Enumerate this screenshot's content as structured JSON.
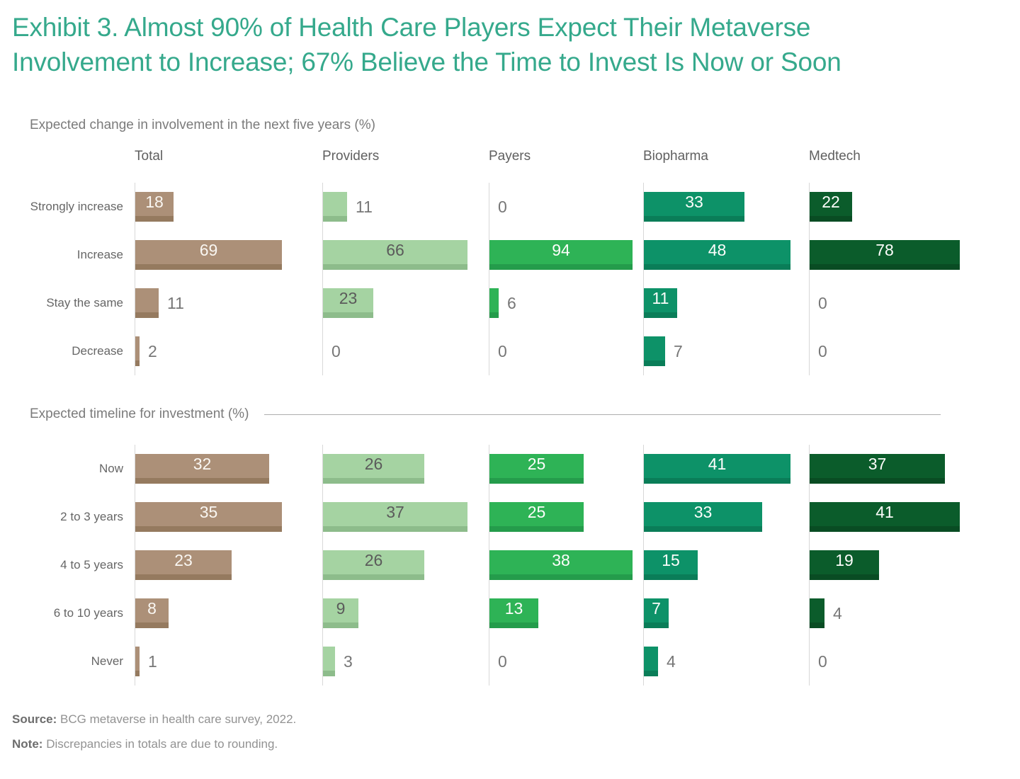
{
  "title": {
    "line1": "Exhibit 3. Almost 90% of Health Care Players Expect Their Metaverse",
    "line2": "Involvement to Increase; 67% Believe the Time to Invest Is Now or Soon"
  },
  "chart_data": [
    {
      "type": "bar",
      "orientation": "horizontal",
      "section_title": "Expected change in involvement in the next five years (%)",
      "value_unit": "%",
      "show_column_headers": true,
      "scaling": "each column normalized to its own max value",
      "categories": [
        "Strongly increase",
        "Increase",
        "Stay the same",
        "Decrease"
      ],
      "series": [
        {
          "name": "Total",
          "color": "#AC9078",
          "edge_color": "#957A5F",
          "inside_label_color": "#FAF7F2",
          "values": [
            18,
            69,
            11,
            2
          ]
        },
        {
          "name": "Providers",
          "color": "#A5D3A2",
          "edge_color": "#8DBC8B",
          "inside_label_color": "#5B5B5B",
          "values": [
            11,
            66,
            23,
            0
          ]
        },
        {
          "name": "Payers",
          "color": "#2EB356",
          "edge_color": "#249C4B",
          "inside_label_color": "#FDFDFB",
          "values": [
            0,
            94,
            6,
            0
          ]
        },
        {
          "name": "Biopharma",
          "color": "#0D9268",
          "edge_color": "#0A7D58",
          "inside_label_color": "#FDFDFB",
          "values": [
            33,
            48,
            11,
            7
          ]
        },
        {
          "name": "Medtech",
          "color": "#0B5C2B",
          "edge_color": "#094C23",
          "inside_label_color": "#FDFDFB",
          "values": [
            22,
            78,
            0,
            0
          ]
        }
      ]
    },
    {
      "type": "bar",
      "orientation": "horizontal",
      "section_title": "Expected timeline for investment (%)",
      "value_unit": "%",
      "show_column_headers": false,
      "scaling": "each column normalized to its own max value",
      "categories": [
        "Now",
        "2 to 3 years",
        "4 to 5 years",
        "6 to 10 years",
        "Never"
      ],
      "series": [
        {
          "name": "Total",
          "color": "#AC9078",
          "edge_color": "#957A5F",
          "inside_label_color": "#FAF7F2",
          "values": [
            32,
            35,
            23,
            8,
            1
          ]
        },
        {
          "name": "Providers",
          "color": "#A5D3A2",
          "edge_color": "#8DBC8B",
          "inside_label_color": "#5B5B5B",
          "values": [
            26,
            37,
            26,
            9,
            3
          ]
        },
        {
          "name": "Payers",
          "color": "#2EB356",
          "edge_color": "#249C4B",
          "inside_label_color": "#FDFDFB",
          "values": [
            25,
            25,
            38,
            13,
            0
          ]
        },
        {
          "name": "Biopharma",
          "color": "#0D9268",
          "edge_color": "#0A7D58",
          "inside_label_color": "#FDFDFB",
          "values": [
            41,
            33,
            15,
            7,
            4
          ]
        },
        {
          "name": "Medtech",
          "color": "#0B5C2B",
          "edge_color": "#094C23",
          "inside_label_color": "#FDFDFB",
          "values": [
            37,
            41,
            19,
            4,
            0
          ]
        }
      ]
    }
  ],
  "footer": {
    "source_label": "Source:",
    "source_text": "BCG metaverse in health care survey, 2022.",
    "note_label": "Note:",
    "note_text": "Discrepancies in totals are due to rounding."
  },
  "colors": {
    "title_green": "#35A98C",
    "axis_line": "#D8D8D8",
    "section_rule": "#ADADAD",
    "outside_value_gray": "#777777"
  }
}
